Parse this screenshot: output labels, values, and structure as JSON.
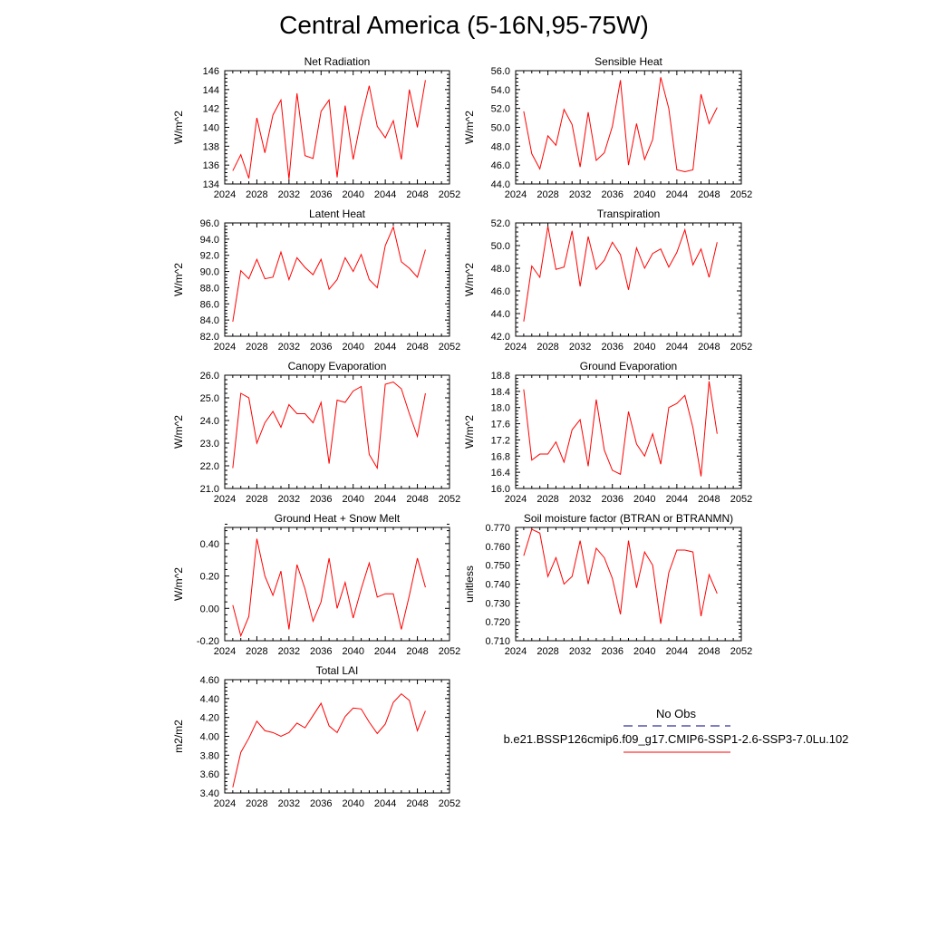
{
  "figure": {
    "title": "Central America (5-16N,95-75W)",
    "line_color": "#ff0000",
    "obs_color": "#000080"
  },
  "legend": {
    "obs_label": "No Obs",
    "model_label": "b.e21.BSSP126cmip6.f09_g17.CMIP6-SSP1-2.6-SSP3-7.0Lu.102"
  },
  "chart_data": [
    {
      "type": "line",
      "title": "Net Radiation",
      "ylabel": "W/m^2",
      "xlim": [
        2024,
        2052
      ],
      "xticks": [
        2024,
        2028,
        2032,
        2036,
        2040,
        2044,
        2048,
        2052
      ],
      "ylim": [
        134,
        146
      ],
      "yticks": [
        134,
        136,
        138,
        140,
        142,
        144,
        146
      ],
      "ytick_labels": [
        "134",
        "136",
        "138",
        "140",
        "142",
        "144",
        "146"
      ],
      "x": [
        2025,
        2026,
        2027,
        2028,
        2029,
        2030,
        2031,
        2032,
        2033,
        2034,
        2035,
        2036,
        2037,
        2038,
        2039,
        2040,
        2041,
        2042,
        2043,
        2044,
        2045,
        2046,
        2047,
        2048,
        2049
      ],
      "series": [
        {
          "values": [
            135.4,
            137.1,
            134.6,
            141.0,
            137.3,
            141.3,
            142.9,
            134.5,
            143.6,
            137.0,
            136.7,
            141.7,
            142.9,
            134.7,
            142.3,
            136.6,
            140.9,
            144.4,
            140.1,
            138.9,
            140.7,
            136.6,
            144.0,
            140.0,
            145.0
          ]
        }
      ]
    },
    {
      "type": "line",
      "title": "Sensible Heat",
      "ylabel": "W/m^2",
      "xlim": [
        2024,
        2052
      ],
      "xticks": [
        2024,
        2028,
        2032,
        2036,
        2040,
        2044,
        2048,
        2052
      ],
      "ylim": [
        44,
        56
      ],
      "yticks": [
        44,
        46,
        48,
        50,
        52,
        54,
        56
      ],
      "ytick_labels": [
        "44.0",
        "46.0",
        "48.0",
        "50.0",
        "52.0",
        "54.0",
        "56.0"
      ],
      "x": [
        2025,
        2026,
        2027,
        2028,
        2029,
        2030,
        2031,
        2032,
        2033,
        2034,
        2035,
        2036,
        2037,
        2038,
        2039,
        2040,
        2041,
        2042,
        2043,
        2044,
        2045,
        2046,
        2047,
        2048,
        2049
      ],
      "series": [
        {
          "values": [
            51.7,
            47.2,
            45.6,
            49.1,
            48.1,
            51.9,
            50.3,
            45.8,
            51.6,
            46.5,
            47.3,
            50.1,
            55.0,
            46.0,
            50.4,
            46.6,
            48.7,
            55.3,
            52.0,
            45.5,
            45.3,
            45.5,
            53.5,
            50.4,
            52.1
          ]
        }
      ]
    },
    {
      "type": "line",
      "title": "Latent Heat",
      "ylabel": "W/m^2",
      "xlim": [
        2024,
        2052
      ],
      "xticks": [
        2024,
        2028,
        2032,
        2036,
        2040,
        2044,
        2048,
        2052
      ],
      "ylim": [
        82,
        96
      ],
      "yticks": [
        82,
        84,
        86,
        88,
        90,
        92,
        94,
        96
      ],
      "ytick_labels": [
        "82.0",
        "84.0",
        "86.0",
        "88.0",
        "90.0",
        "92.0",
        "94.0",
        "96.0"
      ],
      "x": [
        2025,
        2026,
        2027,
        2028,
        2029,
        2030,
        2031,
        2032,
        2033,
        2034,
        2035,
        2036,
        2037,
        2038,
        2039,
        2040,
        2041,
        2042,
        2043,
        2044,
        2045,
        2046,
        2047,
        2048,
        2049
      ],
      "series": [
        {
          "values": [
            83.8,
            90.1,
            89.1,
            91.5,
            89.1,
            89.3,
            92.4,
            89.0,
            91.7,
            90.5,
            89.6,
            91.5,
            87.8,
            89.0,
            91.7,
            90.0,
            92.1,
            89.0,
            88.0,
            93.2,
            95.5,
            91.2,
            90.4,
            89.3,
            92.7
          ]
        }
      ]
    },
    {
      "type": "line",
      "title": "Transpiration",
      "ylabel": "W/m^2",
      "xlim": [
        2024,
        2052
      ],
      "xticks": [
        2024,
        2028,
        2032,
        2036,
        2040,
        2044,
        2048,
        2052
      ],
      "ylim": [
        42,
        52
      ],
      "yticks": [
        42,
        44,
        46,
        48,
        50,
        52
      ],
      "ytick_labels": [
        "42.0",
        "44.0",
        "46.0",
        "48.0",
        "50.0",
        "52.0"
      ],
      "x": [
        2025,
        2026,
        2027,
        2028,
        2029,
        2030,
        2031,
        2032,
        2033,
        2034,
        2035,
        2036,
        2037,
        2038,
        2039,
        2040,
        2041,
        2042,
        2043,
        2044,
        2045,
        2046,
        2047,
        2048,
        2049
      ],
      "series": [
        {
          "values": [
            43.3,
            48.2,
            47.2,
            51.7,
            47.9,
            48.1,
            51.3,
            46.4,
            50.8,
            47.9,
            48.7,
            50.3,
            49.2,
            46.1,
            49.8,
            48.0,
            49.3,
            49.7,
            48.1,
            49.4,
            51.4,
            48.3,
            49.7,
            47.2,
            50.3
          ]
        }
      ]
    },
    {
      "type": "line",
      "title": "Canopy Evaporation",
      "ylabel": "W/m^2",
      "xlim": [
        2024,
        2052
      ],
      "xticks": [
        2024,
        2028,
        2032,
        2036,
        2040,
        2044,
        2048,
        2052
      ],
      "ylim": [
        21,
        26
      ],
      "yticks": [
        21,
        22,
        23,
        24,
        25,
        26
      ],
      "ytick_labels": [
        "21.0",
        "22.0",
        "23.0",
        "24.0",
        "25.0",
        "26.0"
      ],
      "x": [
        2025,
        2026,
        2027,
        2028,
        2029,
        2030,
        2031,
        2032,
        2033,
        2034,
        2035,
        2036,
        2037,
        2038,
        2039,
        2040,
        2041,
        2042,
        2043,
        2044,
        2045,
        2046,
        2047,
        2048,
        2049
      ],
      "series": [
        {
          "values": [
            21.9,
            25.2,
            25.0,
            23.0,
            23.9,
            24.4,
            23.7,
            24.7,
            24.3,
            24.3,
            23.9,
            24.8,
            22.1,
            24.9,
            24.8,
            25.3,
            25.5,
            22.5,
            21.9,
            25.6,
            25.7,
            25.4,
            24.3,
            23.3,
            25.2
          ]
        }
      ]
    },
    {
      "type": "line",
      "title": "Ground Evaporation",
      "ylabel": "W/m^2",
      "xlim": [
        2024,
        2052
      ],
      "xticks": [
        2024,
        2028,
        2032,
        2036,
        2040,
        2044,
        2048,
        2052
      ],
      "ylim": [
        16.0,
        18.8
      ],
      "yticks": [
        16.0,
        16.4,
        16.8,
        17.2,
        17.6,
        18.0,
        18.4,
        18.8
      ],
      "ytick_labels": [
        "16.0",
        "16.4",
        "16.8",
        "17.2",
        "17.6",
        "18.0",
        "18.4",
        "18.8"
      ],
      "x": [
        2025,
        2026,
        2027,
        2028,
        2029,
        2030,
        2031,
        2032,
        2033,
        2034,
        2035,
        2036,
        2037,
        2038,
        2039,
        2040,
        2041,
        2042,
        2043,
        2044,
        2045,
        2046,
        2047,
        2048,
        2049
      ],
      "series": [
        {
          "values": [
            18.45,
            16.7,
            16.85,
            16.85,
            17.15,
            16.65,
            17.45,
            17.7,
            16.55,
            18.2,
            16.95,
            16.45,
            16.35,
            17.9,
            17.1,
            16.8,
            17.35,
            16.6,
            18.0,
            18.1,
            18.3,
            17.5,
            16.3,
            18.65,
            17.35
          ]
        }
      ]
    },
    {
      "type": "line",
      "title": "Ground Heat + Snow Melt",
      "ylabel": "W/m^2",
      "xlim": [
        2024,
        2052
      ],
      "xticks": [
        2024,
        2028,
        2032,
        2036,
        2040,
        2044,
        2048,
        2052
      ],
      "ylim": [
        -0.2,
        0.5
      ],
      "yticks": [
        -0.2,
        0.0,
        0.2,
        0.4
      ],
      "ytick_labels": [
        "-0.20",
        "0.00",
        "0.20",
        "0.40"
      ],
      "x": [
        2025,
        2026,
        2027,
        2028,
        2029,
        2030,
        2031,
        2032,
        2033,
        2034,
        2035,
        2036,
        2037,
        2038,
        2039,
        2040,
        2041,
        2042,
        2043,
        2044,
        2045,
        2046,
        2047,
        2048,
        2049
      ],
      "series": [
        {
          "values": [
            0.02,
            -0.17,
            -0.05,
            0.43,
            0.2,
            0.08,
            0.23,
            -0.13,
            0.27,
            0.12,
            -0.08,
            0.04,
            0.31,
            0.0,
            0.16,
            -0.06,
            0.12,
            0.28,
            0.07,
            0.09,
            0.09,
            -0.13,
            0.08,
            0.31,
            0.13
          ]
        }
      ]
    },
    {
      "type": "line",
      "title": "Soil moisture factor (BTRAN or BTRANMN)",
      "ylabel": "unitless",
      "xlim": [
        2024,
        2052
      ],
      "xticks": [
        2024,
        2028,
        2032,
        2036,
        2040,
        2044,
        2048,
        2052
      ],
      "ylim": [
        0.71,
        0.77
      ],
      "yticks": [
        0.71,
        0.72,
        0.73,
        0.74,
        0.75,
        0.76,
        0.77
      ],
      "ytick_labels": [
        "0.710",
        "0.720",
        "0.730",
        "0.740",
        "0.750",
        "0.760",
        "0.770"
      ],
      "x": [
        2025,
        2026,
        2027,
        2028,
        2029,
        2030,
        2031,
        2032,
        2033,
        2034,
        2035,
        2036,
        2037,
        2038,
        2039,
        2040,
        2041,
        2042,
        2043,
        2044,
        2045,
        2046,
        2047,
        2048,
        2049
      ],
      "series": [
        {
          "values": [
            0.755,
            0.769,
            0.767,
            0.744,
            0.754,
            0.74,
            0.744,
            0.763,
            0.74,
            0.759,
            0.754,
            0.743,
            0.724,
            0.763,
            0.738,
            0.757,
            0.75,
            0.719,
            0.746,
            0.758,
            0.758,
            0.757,
            0.723,
            0.745,
            0.735
          ]
        }
      ]
    },
    {
      "type": "line",
      "title": "Total LAI",
      "ylabel": "m2/m2",
      "xlim": [
        2024,
        2052
      ],
      "xticks": [
        2024,
        2028,
        2032,
        2036,
        2040,
        2044,
        2048,
        2052
      ],
      "ylim": [
        3.4,
        4.6
      ],
      "yticks": [
        3.4,
        3.6,
        3.8,
        4.0,
        4.2,
        4.4,
        4.6
      ],
      "ytick_labels": [
        "3.40",
        "3.60",
        "3.80",
        "4.00",
        "4.20",
        "4.40",
        "4.60"
      ],
      "x": [
        2025,
        2026,
        2027,
        2028,
        2029,
        2030,
        2031,
        2032,
        2033,
        2034,
        2035,
        2036,
        2037,
        2038,
        2039,
        2040,
        2041,
        2042,
        2043,
        2044,
        2045,
        2046,
        2047,
        2048,
        2049
      ],
      "series": [
        {
          "values": [
            3.46,
            3.83,
            3.98,
            4.16,
            4.06,
            4.04,
            4.0,
            4.04,
            4.14,
            4.09,
            4.22,
            4.35,
            4.11,
            4.04,
            4.21,
            4.3,
            4.29,
            4.15,
            4.03,
            4.13,
            4.36,
            4.45,
            4.38,
            4.06,
            4.27
          ]
        }
      ]
    }
  ]
}
